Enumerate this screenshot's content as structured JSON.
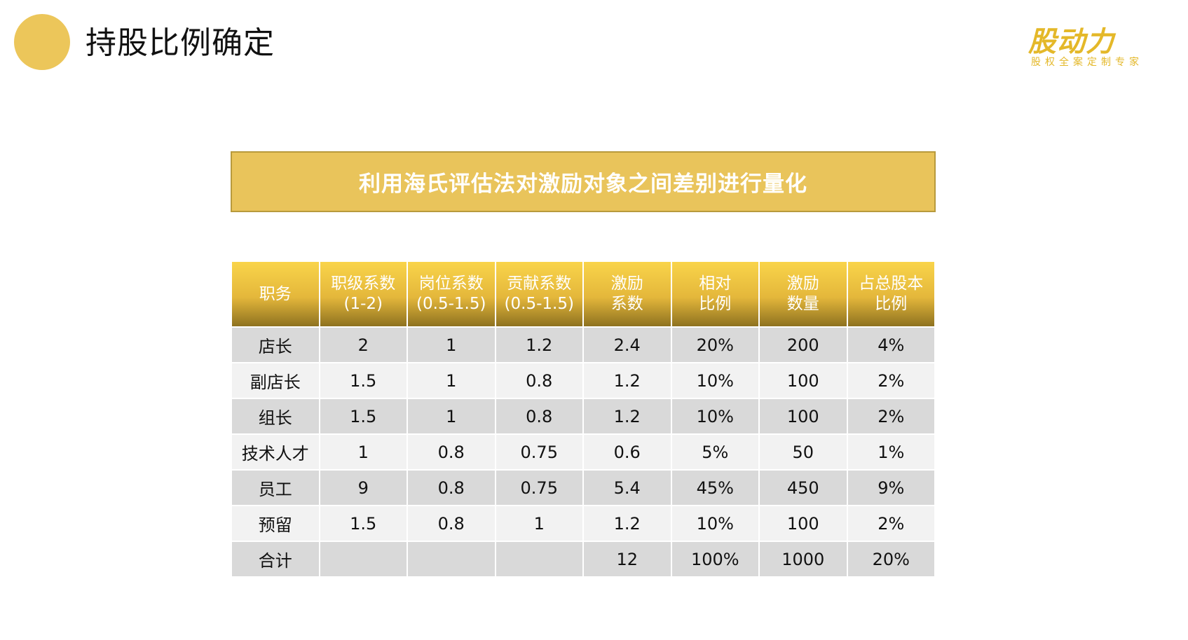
{
  "header": {
    "title": "持股比例确定",
    "logo": {
      "mark": "股动力",
      "tagline": "股权全案定制专家"
    }
  },
  "banner": {
    "text": "利用海氏评估法对激励对象之间差别进行量化"
  },
  "table": {
    "columns": [
      "职务",
      "职级系数\n(1-2)",
      "岗位系数\n(0.5-1.5)",
      "贡献系数\n(0.5-1.5)",
      "激励\n系数",
      "相对\n比例",
      "激励\n数量",
      "占总股本\n比例"
    ],
    "rows": [
      [
        "店长",
        "2",
        "1",
        "1.2",
        "2.4",
        "20%",
        "200",
        "4%"
      ],
      [
        "副店长",
        "1.5",
        "1",
        "0.8",
        "1.2",
        "10%",
        "100",
        "2%"
      ],
      [
        "组长",
        "1.5",
        "1",
        "0.8",
        "1.2",
        "10%",
        "100",
        "2%"
      ],
      [
        "技术人才",
        "1",
        "0.8",
        "0.75",
        "0.6",
        "5%",
        "50",
        "1%"
      ],
      [
        "员工",
        "9",
        "0.8",
        "0.75",
        "5.4",
        "45%",
        "450",
        "9%"
      ],
      [
        "预留",
        "1.5",
        "0.8",
        "1",
        "1.2",
        "10%",
        "100",
        "2%"
      ],
      [
        "合计",
        "",
        "",
        "",
        "12",
        "100%",
        "1000",
        "20%"
      ]
    ]
  },
  "colors": {
    "accent": "#ecc65a",
    "banner": "#e9c45b",
    "header_gradient_top": "#f9d44a",
    "header_gradient_bottom": "#8e7220",
    "row_dark": "#d9d9d9",
    "row_light": "#f2f2f2",
    "logo": "#e4b829"
  }
}
